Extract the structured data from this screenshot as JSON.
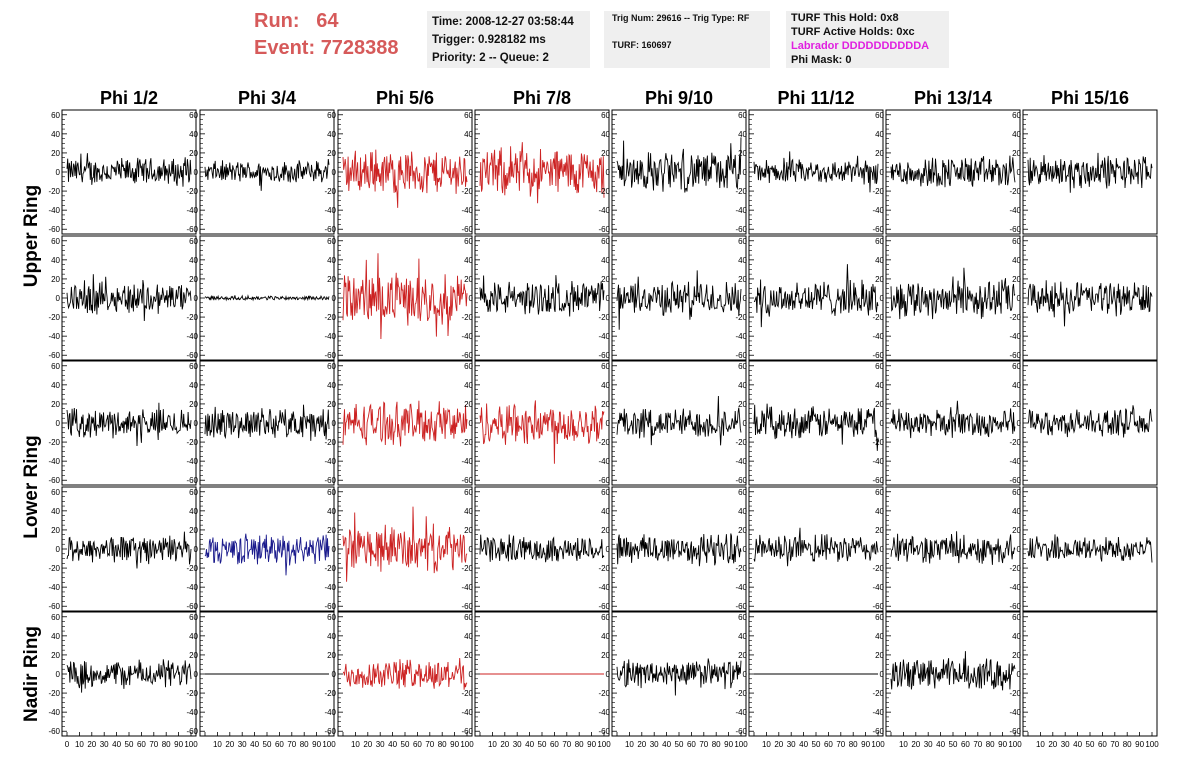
{
  "run_label": "Run:",
  "run_value": "64",
  "event_label": "Event:",
  "event_value": "7728388",
  "time_line": "Time: 2008-12-27 03:58:44",
  "trigger_line": "Trigger: 0.928182 ms",
  "priority_line": "Priority: 2 -- Queue: 2",
  "trig_line": "Trig Num: 29616 -- Trig Type: RF",
  "turf_line": "TURF: 160697",
  "hold_line": "TURF This Hold: 0x8",
  "active_holds_line": "TURF Active Holds: 0xc",
  "labrador_line": "Labrador DDDDDDDDDDA",
  "phi_mask_line": "Phi Mask: 0",
  "colors": {
    "run_info": "#d65a5a",
    "labrador": "#e020e0",
    "black_trace": "#000000",
    "red_trace": "#cc2222",
    "blue_trace": "#1a1a8c",
    "info_box": "#efefef"
  },
  "chart_data": {
    "type": "line",
    "columns": [
      "Phi 1/2",
      "Phi 3/4",
      "Phi 5/6",
      "Phi 7/8",
      "Phi 9/10",
      "Phi 11/12",
      "Phi 13/14",
      "Phi 15/16"
    ],
    "ring_labels": [
      {
        "text": "Upper Ring"
      },
      {
        "text": "Lower Ring"
      },
      {
        "text": "Nadir Ring"
      }
    ],
    "x_range": [
      0,
      100
    ],
    "y_range": [
      -65,
      65
    ],
    "y_ticks": [
      -60,
      -40,
      -20,
      0,
      20,
      40,
      60
    ],
    "x_tick_labels": [
      "0",
      "10",
      "20",
      "30",
      "40",
      "50",
      "60",
      "70",
      "80",
      "90",
      "100"
    ],
    "rows": [
      [
        {
          "color": "black",
          "amplitude": 14
        },
        {
          "color": "black",
          "amplitude": 11
        },
        {
          "color": "red",
          "amplitude": 22
        },
        {
          "color": "red",
          "amplitude": 24
        },
        {
          "color": "black",
          "amplitude": 20
        },
        {
          "color": "black",
          "amplitude": 12
        },
        {
          "color": "black",
          "amplitude": 16
        },
        {
          "color": "black",
          "amplitude": 17
        }
      ],
      [
        {
          "color": "black",
          "amplitude": 16
        },
        {
          "color": "black",
          "amplitude": 2
        },
        {
          "color": "red",
          "amplitude": 25
        },
        {
          "color": "black",
          "amplitude": 17
        },
        {
          "color": "black",
          "amplitude": 17
        },
        {
          "color": "black",
          "amplitude": 18
        },
        {
          "color": "black",
          "amplitude": 20
        },
        {
          "color": "black",
          "amplitude": 17
        }
      ],
      [
        {
          "color": "black",
          "amplitude": 14
        },
        {
          "color": "black",
          "amplitude": 15
        },
        {
          "color": "red",
          "amplitude": 21
        },
        {
          "color": "red",
          "amplitude": 22
        },
        {
          "color": "black",
          "amplitude": 15
        },
        {
          "color": "black",
          "amplitude": 16
        },
        {
          "color": "black",
          "amplitude": 14
        },
        {
          "color": "black",
          "amplitude": 13
        }
      ],
      [
        {
          "color": "black",
          "amplitude": 14
        },
        {
          "color": "blue",
          "amplitude": 15
        },
        {
          "color": "red",
          "amplitude": 23
        },
        {
          "color": "black",
          "amplitude": 13
        },
        {
          "color": "black",
          "amplitude": 16
        },
        {
          "color": "black",
          "amplitude": 14
        },
        {
          "color": "black",
          "amplitude": 14
        },
        {
          "color": "black",
          "amplitude": 13
        }
      ],
      [
        {
          "color": "black",
          "amplitude": 14
        },
        {
          "color": "black",
          "amplitude": 0
        },
        {
          "color": "red",
          "amplitude": 15
        },
        {
          "color": "red",
          "amplitude": 0
        },
        {
          "color": "black",
          "amplitude": 14
        },
        {
          "color": "black",
          "amplitude": 0
        },
        {
          "color": "black",
          "amplitude": 16
        },
        {
          "color": "black",
          "amplitude": null
        }
      ]
    ]
  }
}
